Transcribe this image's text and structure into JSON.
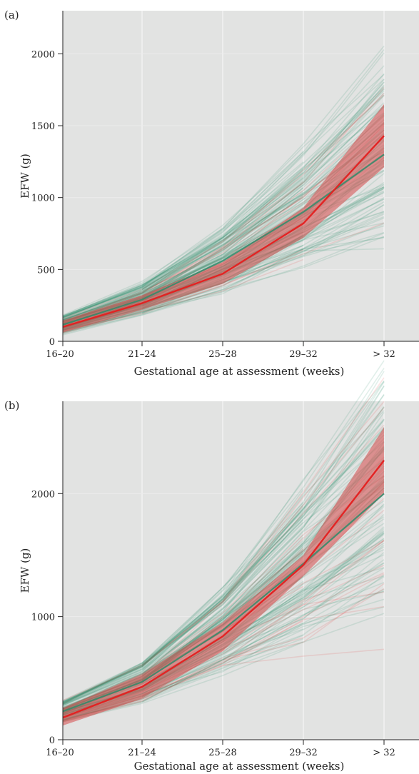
{
  "colors": {
    "panel_bg": "#e2e3e2",
    "green": "#2e8b6a",
    "red": "#e41f1f",
    "band": "#d64a4a",
    "axis": "#222222"
  },
  "chart_data": [
    {
      "type": "line",
      "panel_label": "(a)",
      "xlabel": "Gestational age at assessment (weeks)",
      "ylabel": "EFW (g)",
      "categories": [
        "16–20",
        "21–24",
        "25–28",
        "29–32",
        "> 32"
      ],
      "ylim": [
        0,
        2300
      ],
      "yticks": [
        0,
        500,
        1000,
        1500,
        2000
      ],
      "grid": true,
      "series": [
        {
          "values": [
            115,
            290,
            560,
            900,
            1300
          ]
        },
        {
          "values": [
            100,
            265,
            470,
            820,
            1430
          ]
        }
      ],
      "band": {
        "lower": [
          60,
          220,
          400,
          720,
          1210
        ],
        "upper": [
          145,
          320,
          550,
          930,
          1650
        ]
      }
    },
    {
      "type": "line",
      "panel_label": "(b)",
      "xlabel": "Gestational age at assessment (weeks)",
      "ylabel": "EFW (g)",
      "categories": [
        "16–20",
        "21–24",
        "25–28",
        "29–32",
        "> 32"
      ],
      "ylim": [
        0,
        2750
      ],
      "yticks": [
        0,
        1000,
        2000
      ],
      "grid": true,
      "series": [
        {
          "values": [
            230,
            470,
            890,
            1430,
            2000
          ]
        },
        {
          "values": [
            180,
            430,
            840,
            1420,
            2270
          ]
        }
      ],
      "band": {
        "lower": [
          115,
          335,
          720,
          1330,
          2000
        ],
        "upper": [
          255,
          530,
          950,
          1500,
          2540
        ]
      }
    }
  ]
}
